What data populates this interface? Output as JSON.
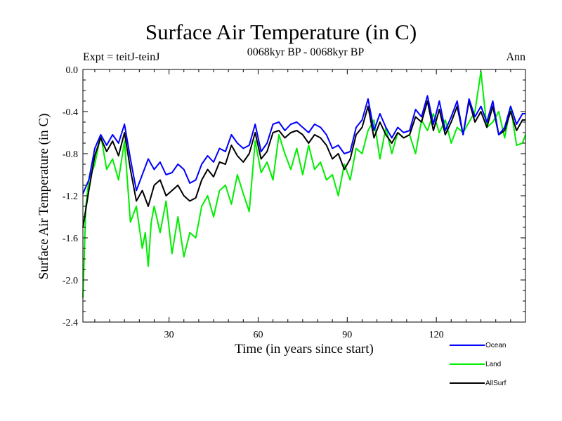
{
  "chart_data": {
    "type": "line",
    "title": "Surface Air Temperature (in C)",
    "subtitle": "0068kyr BP - 0068kyr BP",
    "left_label": "Expt = teitJ-teinJ",
    "right_label": "Ann",
    "xlabel": "Time (in years since start)",
    "ylabel": "Surface Air Temperature (in C)",
    "xlim": [
      1,
      150
    ],
    "ylim": [
      -2.4,
      0.0
    ],
    "xticks": [
      30,
      60,
      90,
      120
    ],
    "yticks": [
      -2.4,
      -2.0,
      -1.6,
      -1.2,
      -0.8,
      -0.4,
      0.0
    ],
    "ytick_labels": [
      "-2.4",
      "-2.0",
      "-1.6",
      "-1.2",
      "-0.8",
      "-0.4",
      "0.0"
    ],
    "legend_position": "bottom-right, below plot",
    "series": [
      {
        "name": "Ocean",
        "color": "#0000ff",
        "x": [
          1,
          3,
          5,
          7,
          9,
          11,
          13,
          15,
          17,
          19,
          21,
          23,
          25,
          27,
          29,
          31,
          33,
          35,
          37,
          39,
          41,
          43,
          45,
          47,
          49,
          51,
          53,
          55,
          57,
          59,
          61,
          63,
          65,
          67,
          69,
          71,
          73,
          75,
          77,
          79,
          81,
          83,
          85,
          87,
          89,
          91,
          93,
          95,
          97,
          99,
          101,
          103,
          105,
          107,
          109,
          111,
          113,
          115,
          117,
          119,
          121,
          123,
          125,
          127,
          129,
          131,
          133,
          135,
          137,
          139,
          141,
          143,
          145,
          147,
          149,
          150
        ],
        "values": [
          -1.18,
          -1.05,
          -0.75,
          -0.62,
          -0.72,
          -0.62,
          -0.7,
          -0.52,
          -0.85,
          -1.15,
          -1.0,
          -0.85,
          -0.95,
          -0.88,
          -1.0,
          -0.98,
          -0.9,
          -0.95,
          -1.08,
          -1.05,
          -0.9,
          -0.82,
          -0.88,
          -0.75,
          -0.78,
          -0.62,
          -0.7,
          -0.75,
          -0.72,
          -0.52,
          -0.78,
          -0.7,
          -0.52,
          -0.5,
          -0.58,
          -0.52,
          -0.5,
          -0.55,
          -0.6,
          -0.52,
          -0.55,
          -0.62,
          -0.75,
          -0.72,
          -0.8,
          -0.78,
          -0.55,
          -0.48,
          -0.28,
          -0.58,
          -0.42,
          -0.55,
          -0.65,
          -0.55,
          -0.6,
          -0.58,
          -0.38,
          -0.45,
          -0.25,
          -0.52,
          -0.3,
          -0.58,
          -0.45,
          -0.3,
          -0.62,
          -0.28,
          -0.45,
          -0.35,
          -0.5,
          -0.3,
          -0.62,
          -0.55,
          -0.35,
          -0.52,
          -0.42,
          -0.42
        ]
      },
      {
        "name": "Land",
        "color": "#00ee00",
        "x": [
          1,
          2,
          3,
          5,
          7,
          9,
          11,
          13,
          15,
          17,
          19,
          21,
          22,
          23,
          24,
          25,
          27,
          29,
          31,
          33,
          35,
          37,
          39,
          41,
          43,
          45,
          47,
          49,
          51,
          53,
          55,
          57,
          59,
          61,
          63,
          65,
          67,
          69,
          71,
          73,
          75,
          77,
          79,
          81,
          83,
          85,
          87,
          89,
          91,
          93,
          95,
          97,
          99,
          101,
          103,
          105,
          107,
          109,
          111,
          113,
          115,
          117,
          119,
          121,
          123,
          125,
          127,
          129,
          131,
          133,
          135,
          137,
          139,
          141,
          143,
          145,
          147,
          149,
          150
        ],
        "values": [
          -2.17,
          -1.3,
          -1.05,
          -0.9,
          -0.62,
          -0.95,
          -0.85,
          -1.05,
          -0.68,
          -1.45,
          -1.3,
          -1.7,
          -1.55,
          -1.87,
          -1.45,
          -1.3,
          -1.55,
          -1.25,
          -1.75,
          -1.4,
          -1.78,
          -1.55,
          -1.6,
          -1.3,
          -1.2,
          -1.4,
          -1.15,
          -1.1,
          -1.28,
          -1.0,
          -1.18,
          -1.35,
          -0.68,
          -0.98,
          -0.88,
          -1.05,
          -0.62,
          -0.8,
          -0.95,
          -0.75,
          -1.0,
          -0.72,
          -0.95,
          -0.88,
          -1.05,
          -1.0,
          -1.2,
          -0.9,
          -1.05,
          -0.75,
          -0.8,
          -0.58,
          -0.48,
          -0.85,
          -0.55,
          -0.8,
          -0.6,
          -0.65,
          -0.62,
          -0.8,
          -0.48,
          -0.58,
          -0.42,
          -0.6,
          -0.48,
          -0.7,
          -0.55,
          -0.6,
          -0.5,
          -0.4,
          -0.02,
          -0.55,
          -0.5,
          -0.4,
          -0.65,
          -0.35,
          -0.72,
          -0.7,
          -0.62
        ]
      },
      {
        "name": "AllSurf",
        "color": "#000000",
        "x": [
          1,
          3,
          5,
          7,
          9,
          11,
          13,
          15,
          17,
          19,
          21,
          23,
          25,
          27,
          29,
          31,
          33,
          35,
          37,
          39,
          41,
          43,
          45,
          47,
          49,
          51,
          53,
          55,
          57,
          59,
          61,
          63,
          65,
          67,
          69,
          71,
          73,
          75,
          77,
          79,
          81,
          83,
          85,
          87,
          89,
          91,
          93,
          95,
          97,
          99,
          101,
          103,
          105,
          107,
          109,
          111,
          113,
          115,
          117,
          119,
          121,
          123,
          125,
          127,
          129,
          131,
          133,
          135,
          137,
          139,
          141,
          143,
          145,
          147,
          149,
          150
        ],
        "values": [
          -1.5,
          -1.15,
          -0.82,
          -0.65,
          -0.78,
          -0.68,
          -0.82,
          -0.6,
          -0.95,
          -1.25,
          -1.15,
          -1.3,
          -1.1,
          -1.05,
          -1.2,
          -1.15,
          -1.1,
          -1.2,
          -1.25,
          -1.22,
          -1.05,
          -0.95,
          -1.02,
          -0.88,
          -0.9,
          -0.72,
          -0.82,
          -0.88,
          -0.8,
          -0.6,
          -0.85,
          -0.78,
          -0.6,
          -0.58,
          -0.65,
          -0.6,
          -0.58,
          -0.62,
          -0.7,
          -0.62,
          -0.65,
          -0.72,
          -0.85,
          -0.8,
          -0.95,
          -0.85,
          -0.62,
          -0.55,
          -0.35,
          -0.65,
          -0.5,
          -0.62,
          -0.7,
          -0.6,
          -0.65,
          -0.62,
          -0.45,
          -0.5,
          -0.3,
          -0.58,
          -0.38,
          -0.62,
          -0.5,
          -0.35,
          -0.62,
          -0.3,
          -0.5,
          -0.4,
          -0.55,
          -0.35,
          -0.62,
          -0.58,
          -0.4,
          -0.58,
          -0.48,
          -0.48
        ]
      }
    ]
  }
}
